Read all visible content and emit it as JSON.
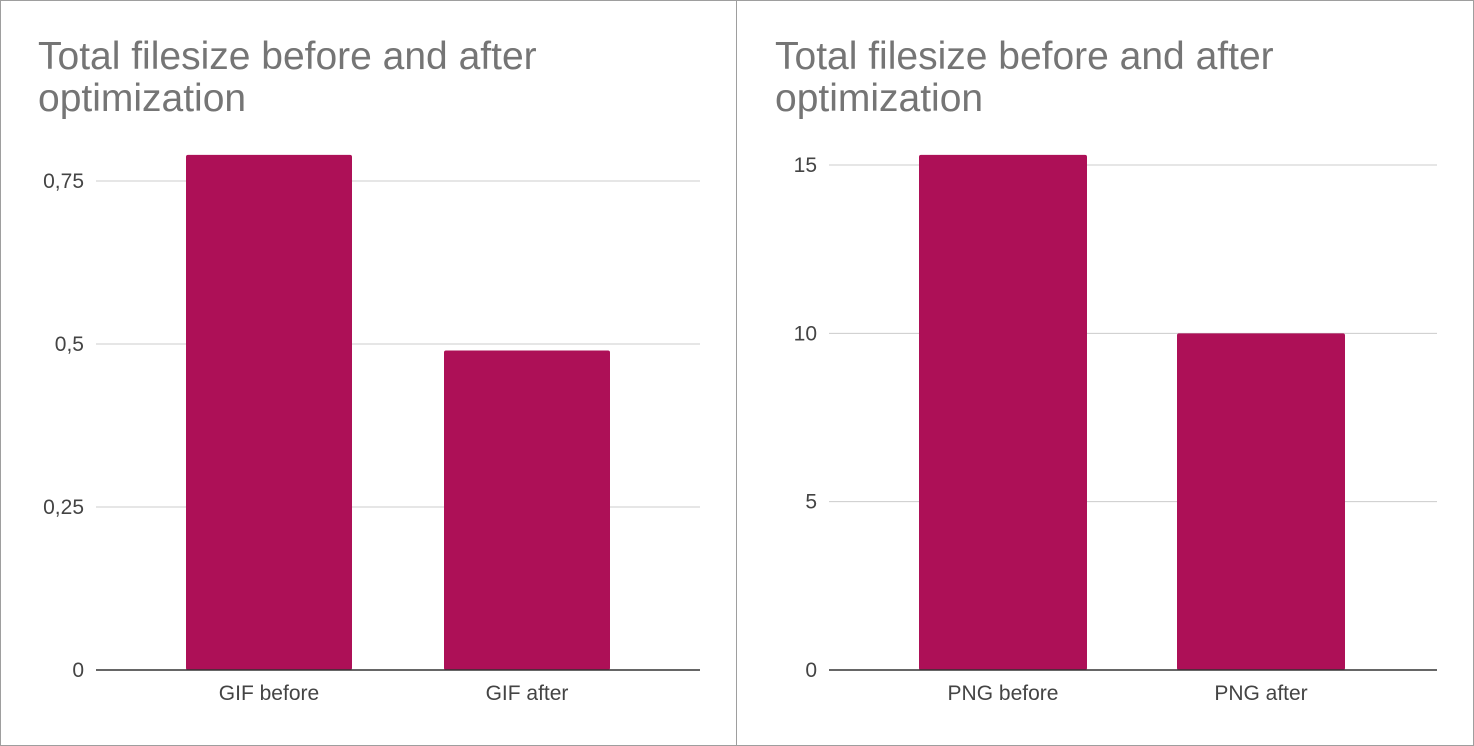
{
  "chart_data": [
    {
      "type": "bar",
      "title": "Total filesize before and after optimization",
      "categories": [
        "GIF before",
        "GIF after"
      ],
      "values": [
        0.79,
        0.49
      ],
      "ylim": [
        0,
        0.75
      ],
      "yticks": [
        0,
        0.25,
        0.5,
        0.75
      ],
      "ytick_labels": [
        "0",
        "0,25",
        "0,5",
        "0,75"
      ],
      "grid": true,
      "bar_color": "#ad1057"
    },
    {
      "type": "bar",
      "title": "Total filesize before and after optimization",
      "categories": [
        "PNG before",
        "PNG after"
      ],
      "values": [
        15.3,
        10
      ],
      "ylim": [
        0,
        15
      ],
      "yticks": [
        0,
        5,
        10,
        15
      ],
      "ytick_labels": [
        "0",
        "5",
        "10",
        "15"
      ],
      "grid": true,
      "bar_color": "#ad1057"
    }
  ]
}
